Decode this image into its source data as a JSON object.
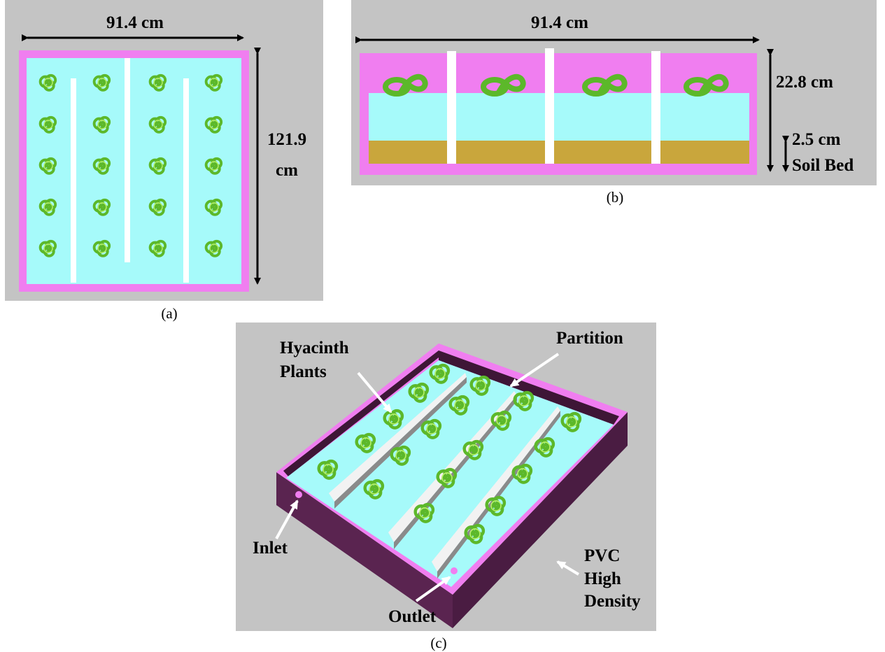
{
  "panels": {
    "a": {
      "caption": "(a)",
      "width_label": "91.4 cm",
      "height_label_line1": "121.9",
      "height_label_line2": "cm"
    },
    "b": {
      "caption": "(b)",
      "width_label": "91.4 cm",
      "depth_label": "22.8 cm",
      "soil_label_line1": "2.5 cm",
      "soil_label_line2": "Soil Bed"
    },
    "c": {
      "caption": "(c)",
      "plants_label_line1": "Hyacinth",
      "plants_label_line2": "Plants",
      "partition_label": "Partition",
      "inlet_label": "Inlet",
      "outlet_label": "Outlet",
      "material_line1": "PVC",
      "material_line2": "High",
      "material_line3": "Density"
    }
  },
  "colors": {
    "background": "#c4c4c4",
    "tank_frame": "#f07ef0",
    "water": "#a6fafa",
    "soil": "#c9a63c",
    "partition": "#ffffff",
    "plant": "#6fd12a",
    "tank_wall_3d": "#5a2450"
  }
}
